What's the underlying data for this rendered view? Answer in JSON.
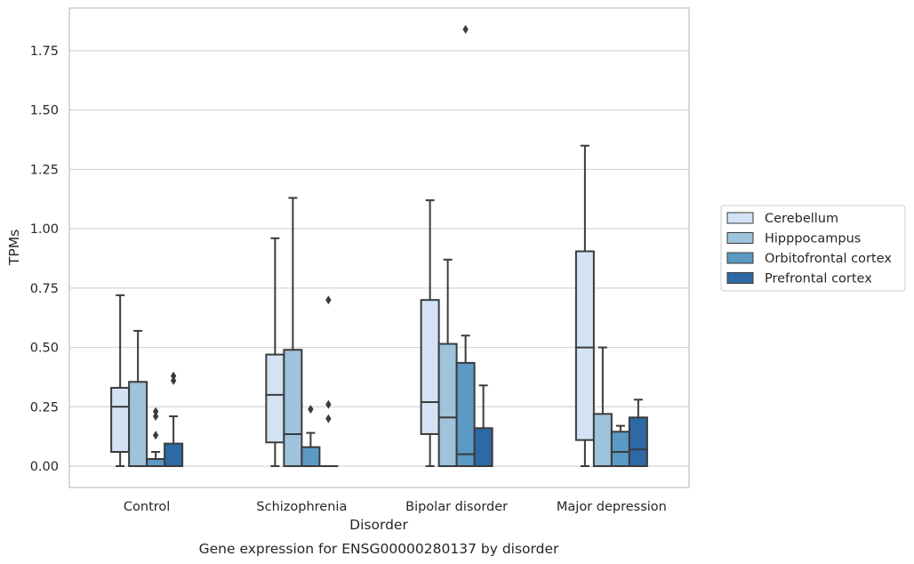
{
  "chart_data": {
    "type": "box",
    "xlabel": "Disorder",
    "ylabel": "TPMs",
    "caption": "Gene expression for ENSG00000280137 by disorder",
    "categories": [
      "Control",
      "Schizophrenia",
      "Bipolar disorder",
      "Major depression"
    ],
    "ylim": [
      -0.09,
      1.93
    ],
    "yticks": [
      0.0,
      0.25,
      0.5,
      0.75,
      1.0,
      1.25,
      1.5,
      1.75
    ],
    "ytick_labels": [
      "0.00",
      "0.25",
      "0.50",
      "0.75",
      "1.00",
      "1.25",
      "1.50",
      "1.75"
    ],
    "grid": "horizontal",
    "legend_position": "right",
    "series": [
      {
        "name": "Cerebellum",
        "color": "#d4e3f3",
        "boxes": [
          {
            "min": 0.0,
            "q1": 0.06,
            "median": 0.25,
            "q3": 0.33,
            "max": 0.72,
            "outliers": []
          },
          {
            "min": 0.0,
            "q1": 0.1,
            "median": 0.3,
            "q3": 0.47,
            "max": 0.96,
            "outliers": []
          },
          {
            "min": 0.0,
            "q1": 0.135,
            "median": 0.27,
            "q3": 0.7,
            "max": 1.12,
            "outliers": []
          },
          {
            "min": 0.0,
            "q1": 0.11,
            "median": 0.5,
            "q3": 0.905,
            "max": 1.35,
            "outliers": []
          }
        ]
      },
      {
        "name": "Hipppocampus",
        "color": "#9dc3dd",
        "boxes": [
          {
            "min": 0.0,
            "q1": 0.0,
            "median": 0.0,
            "q3": 0.355,
            "max": 0.57,
            "outliers": []
          },
          {
            "min": 0.0,
            "q1": 0.0,
            "median": 0.135,
            "q3": 0.49,
            "max": 1.13,
            "outliers": []
          },
          {
            "min": 0.0,
            "q1": 0.0,
            "median": 0.205,
            "q3": 0.515,
            "max": 0.87,
            "outliers": []
          },
          {
            "min": 0.0,
            "q1": 0.0,
            "median": 0.0,
            "q3": 0.22,
            "max": 0.5,
            "outliers": []
          }
        ]
      },
      {
        "name": "Orbitofrontal cortex",
        "color": "#5b9ac4",
        "boxes": [
          {
            "min": 0.0,
            "q1": 0.0,
            "median": 0.0,
            "q3": 0.03,
            "max": 0.06,
            "outliers": [
              0.13,
              0.21,
              0.23
            ]
          },
          {
            "min": 0.0,
            "q1": 0.0,
            "median": 0.0,
            "q3": 0.08,
            "max": 0.14,
            "outliers": [
              0.24
            ]
          },
          {
            "min": 0.0,
            "q1": 0.0,
            "median": 0.05,
            "q3": 0.435,
            "max": 0.55,
            "outliers": [
              1.84
            ]
          },
          {
            "min": 0.0,
            "q1": 0.0,
            "median": 0.06,
            "q3": 0.145,
            "max": 0.17,
            "outliers": []
          }
        ]
      },
      {
        "name": "Prefrontal cortex",
        "color": "#2d6aa5",
        "boxes": [
          {
            "min": 0.0,
            "q1": 0.0,
            "median": 0.0,
            "q3": 0.095,
            "max": 0.21,
            "outliers": [
              0.36,
              0.38
            ]
          },
          {
            "min": 0.0,
            "q1": 0.0,
            "median": 0.0,
            "q3": 0.0,
            "max": 0.0,
            "outliers": [
              0.2,
              0.26,
              0.7
            ]
          },
          {
            "min": 0.0,
            "q1": 0.0,
            "median": 0.0,
            "q3": 0.16,
            "max": 0.34,
            "outliers": []
          },
          {
            "min": 0.0,
            "q1": 0.0,
            "median": 0.07,
            "q3": 0.205,
            "max": 0.28,
            "outliers": []
          }
        ]
      }
    ]
  }
}
